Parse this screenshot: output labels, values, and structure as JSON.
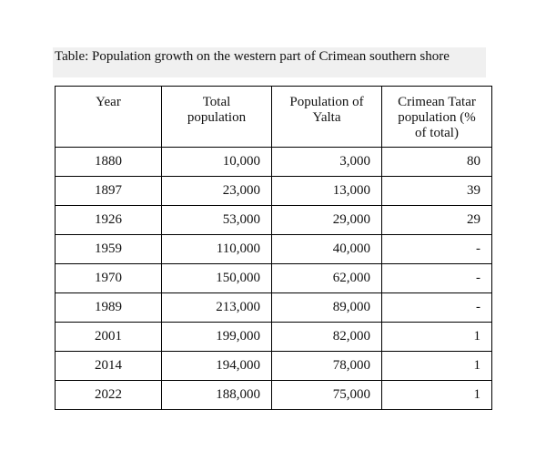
{
  "caption": "Table: Population growth on the western part of Crimean southern shore",
  "table": {
    "headers": [
      "Year",
      "Total population",
      "Population of Yalta",
      "Crimean Tatar population (% of total)"
    ],
    "rows": [
      {
        "year": "1880",
        "total": "10,000",
        "yalta": "3,000",
        "tatar": "80"
      },
      {
        "year": "1897",
        "total": "23,000",
        "yalta": "13,000",
        "tatar": "39"
      },
      {
        "year": "1926",
        "total": "53,000",
        "yalta": "29,000",
        "tatar": "29"
      },
      {
        "year": "1959",
        "total": "110,000",
        "yalta": "40,000",
        "tatar": "-"
      },
      {
        "year": "1970",
        "total": "150,000",
        "yalta": "62,000",
        "tatar": "-"
      },
      {
        "year": "1989",
        "total": "213,000",
        "yalta": "89,000",
        "tatar": "-"
      },
      {
        "year": "2001",
        "total": "199,000",
        "yalta": "82,000",
        "tatar": "1"
      },
      {
        "year": "2014",
        "total": "194,000",
        "yalta": "78,000",
        "tatar": "1"
      },
      {
        "year": "2022",
        "total": "188,000",
        "yalta": "75,000",
        "tatar": "1"
      }
    ]
  }
}
